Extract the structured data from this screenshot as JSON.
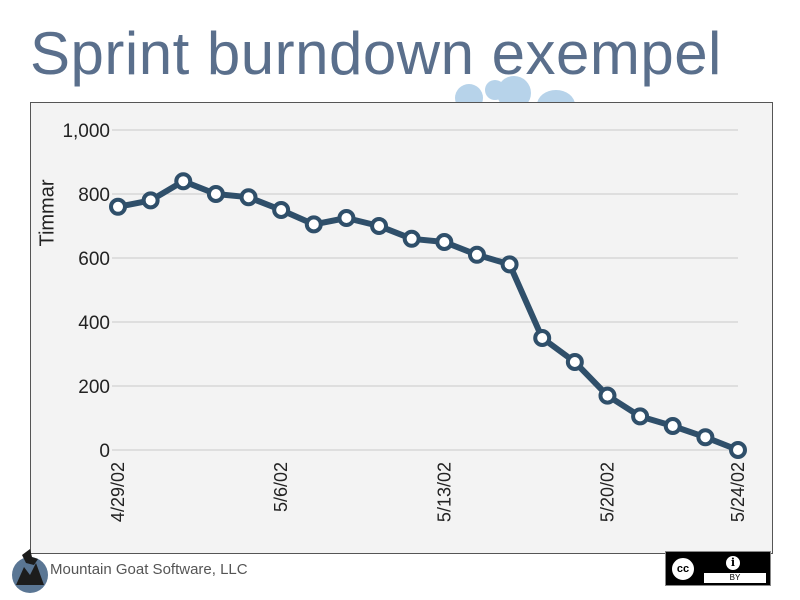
{
  "slide": {
    "title": "Sprint burndown exempel",
    "footer_text": "Mountain Goat Software, LLC",
    "license_badge": {
      "cc_label": "cc",
      "by_label": "BY",
      "info_symbol": "i"
    }
  },
  "colors": {
    "title": "#5a6f8c",
    "line": "#2f4f6a",
    "grid": "#c9c9c9",
    "plot_bg": "#f3f3f3",
    "accent_dots": "#b7d3ea"
  },
  "chart_data": {
    "type": "line",
    "title": "",
    "xlabel": "",
    "ylabel": "Timmar",
    "ylim": [
      0,
      1000
    ],
    "yticks": [
      0,
      200,
      400,
      600,
      800,
      1000
    ],
    "ytick_labels": [
      "0",
      "200",
      "400",
      "600",
      "800",
      "1,000"
    ],
    "x": [
      "4/29/02",
      "4/30/02",
      "5/1/02",
      "5/2/02",
      "5/3/02",
      "5/6/02",
      "5/7/02",
      "5/8/02",
      "5/9/02",
      "5/10/02",
      "5/13/02",
      "5/14/02",
      "5/15/02",
      "5/16/02",
      "5/17/02",
      "5/20/02",
      "5/21/02",
      "5/22/02",
      "5/23/02",
      "5/24/02"
    ],
    "xtick_labels": [
      "4/29/02",
      "5/6/02",
      "5/13/02",
      "5/20/02",
      "5/24/02"
    ],
    "series": [
      {
        "values": [
          760,
          780,
          840,
          800,
          790,
          750,
          705,
          725,
          700,
          660,
          650,
          610,
          580,
          350,
          275,
          170,
          105,
          75,
          40,
          0
        ]
      }
    ],
    "grid": true,
    "legend": "none"
  }
}
